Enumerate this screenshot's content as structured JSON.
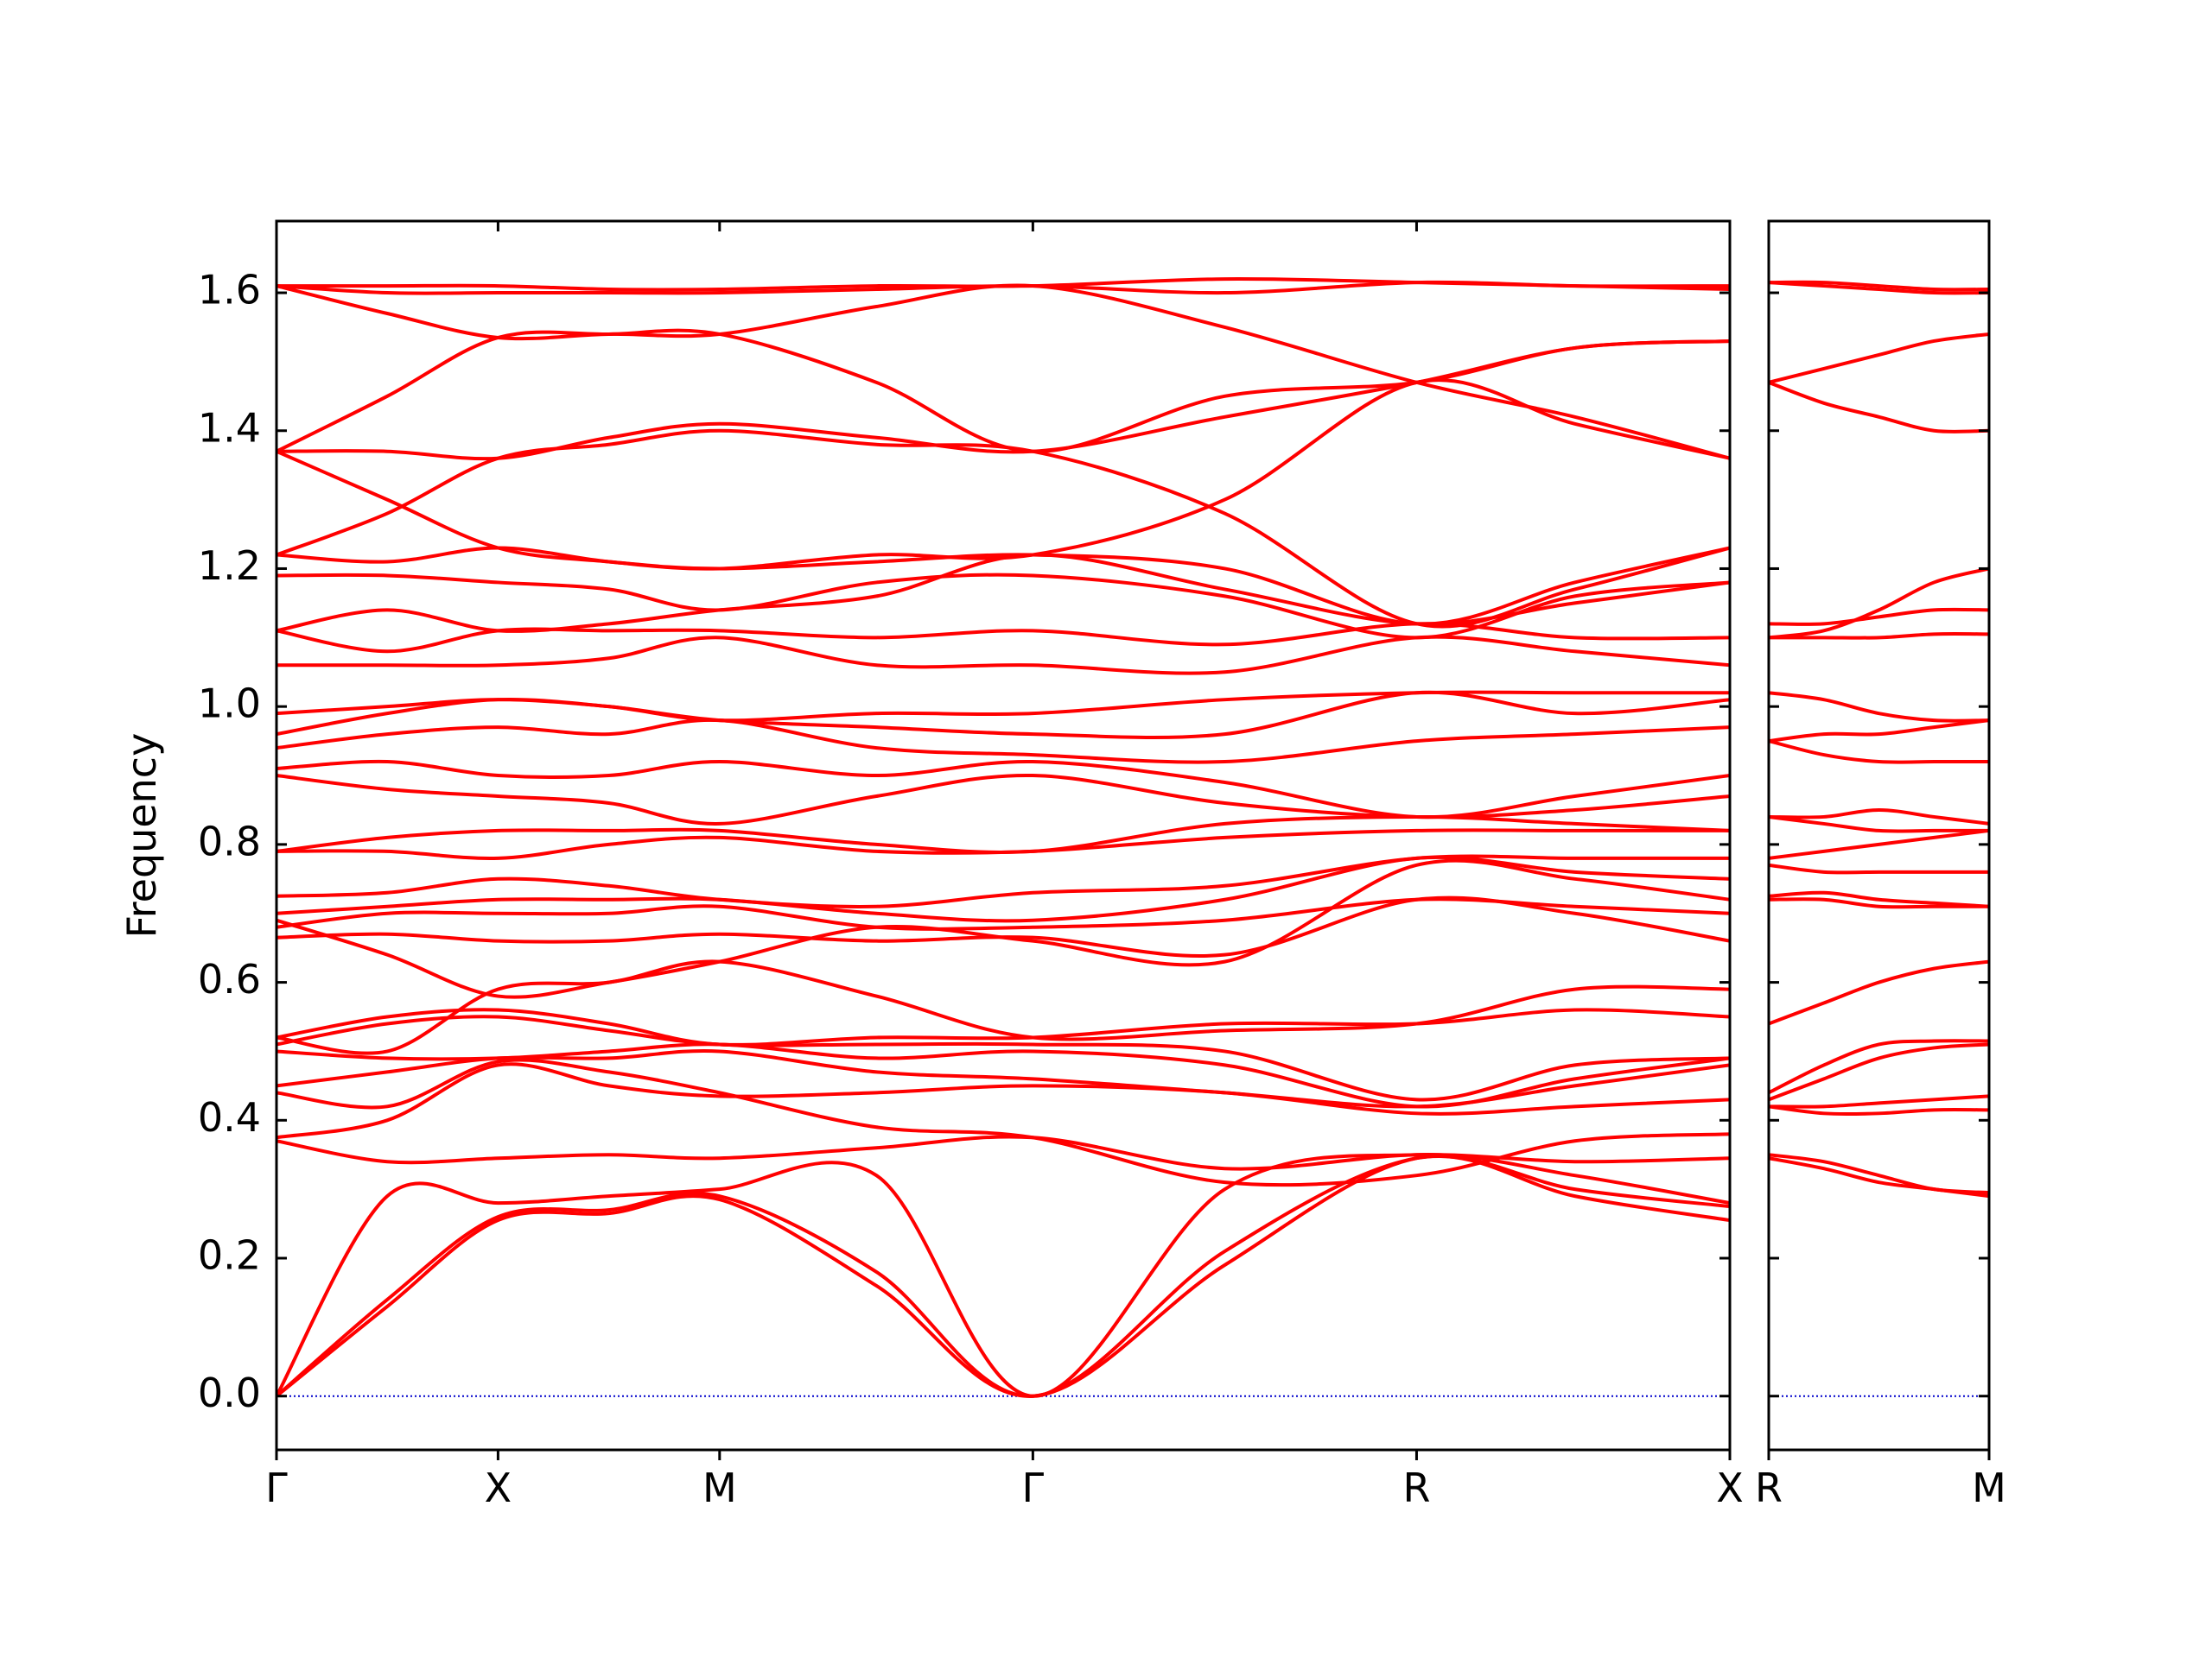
{
  "chart_data": [
    {
      "type": "line",
      "ylabel": "Frequency",
      "color": "#ff0000",
      "hline": 0,
      "hline_color": "#0000cc",
      "xlim": [
        0,
        3.28
      ],
      "ylim": [
        -0.078,
        1.704
      ],
      "xticks": [
        {
          "value": 0,
          "label": "Γ"
        },
        {
          "value": 0.5,
          "label": "X"
        },
        {
          "value": 1.0,
          "label": "M"
        },
        {
          "value": 1.707,
          "label": "Γ"
        },
        {
          "value": 2.573,
          "label": "R"
        },
        {
          "value": 3.28,
          "label": "X"
        }
      ],
      "yticks": [
        {
          "value": 0,
          "label": "0.0"
        },
        0.2,
        0.4,
        0.6,
        0.8,
        {
          "value": 1,
          "label": "1.0"
        },
        1.2,
        1.4,
        1.6
      ],
      "ytick_labels": true,
      "x": [
        0,
        0.25,
        0.5,
        0.75,
        1.0,
        1.354,
        1.707,
        2.14,
        2.573,
        2.93,
        3.28
      ],
      "series": [
        {
          "values": [
            0,
            0.13,
            0.255,
            0.265,
            0.285,
            0.16,
            0,
            0.19,
            0.345,
            0.29,
            0.255
          ]
        },
        {
          "values": [
            0,
            0.14,
            0.26,
            0.27,
            0.29,
            0.18,
            0,
            0.21,
            0.345,
            0.3,
            0.275
          ]
        },
        {
          "values": [
            0,
            0.29,
            0.28,
            0.29,
            0.3,
            0.32,
            0,
            0.3,
            0.35,
            0.32,
            0.28
          ]
        },
        {
          "values": [
            0.37,
            0.34,
            0.345,
            0.35,
            0.345,
            0.36,
            0.375,
            0.33,
            0.35,
            0.34,
            0.345
          ]
        },
        {
          "values": [
            0.375,
            0.4,
            0.48,
            0.45,
            0.435,
            0.44,
            0.45,
            0.44,
            0.41,
            0.42,
            0.43
          ]
        },
        {
          "values": [
            0.44,
            0.42,
            0.485,
            0.47,
            0.44,
            0.39,
            0.375,
            0.31,
            0.32,
            0.37,
            0.38
          ]
        },
        {
          "values": [
            0.45,
            0.47,
            0.49,
            0.49,
            0.5,
            0.47,
            0.46,
            0.44,
            0.42,
            0.45,
            0.48
          ]
        },
        {
          "values": [
            0.5,
            0.49,
            0.49,
            0.5,
            0.51,
            0.49,
            0.5,
            0.48,
            0.42,
            0.46,
            0.49
          ]
        },
        {
          "values": [
            0.51,
            0.54,
            0.55,
            0.53,
            0.51,
            0.51,
            0.51,
            0.5,
            0.43,
            0.48,
            0.49
          ]
        },
        {
          "values": [
            0.52,
            0.55,
            0.56,
            0.54,
            0.51,
            0.52,
            0.52,
            0.54,
            0.54,
            0.56,
            0.55
          ]
        },
        {
          "values": [
            0.52,
            0.5,
            0.59,
            0.6,
            0.63,
            0.58,
            0.52,
            0.53,
            0.54,
            0.59,
            0.59
          ]
        },
        {
          "values": [
            0.665,
            0.67,
            0.66,
            0.66,
            0.67,
            0.66,
            0.665,
            0.64,
            0.72,
            0.7,
            0.66
          ]
        },
        {
          "values": [
            0.68,
            0.7,
            0.7,
            0.7,
            0.71,
            0.68,
            0.68,
            0.69,
            0.72,
            0.71,
            0.7
          ]
        },
        {
          "values": [
            0.69,
            0.64,
            0.58,
            0.6,
            0.63,
            0.68,
            0.66,
            0.63,
            0.77,
            0.75,
            0.72
          ]
        },
        {
          "values": [
            0.7,
            0.71,
            0.72,
            0.72,
            0.72,
            0.7,
            0.69,
            0.72,
            0.78,
            0.76,
            0.75
          ]
        },
        {
          "values": [
            0.725,
            0.73,
            0.75,
            0.74,
            0.72,
            0.71,
            0.73,
            0.74,
            0.78,
            0.78,
            0.78
          ]
        },
        {
          "values": [
            0.79,
            0.79,
            0.78,
            0.8,
            0.81,
            0.79,
            0.79,
            0.81,
            0.82,
            0.82,
            0.82
          ]
        },
        {
          "values": [
            0.79,
            0.81,
            0.82,
            0.82,
            0.82,
            0.8,
            0.79,
            0.83,
            0.84,
            0.83,
            0.82
          ]
        },
        {
          "values": [
            0.9,
            0.88,
            0.87,
            0.86,
            0.83,
            0.87,
            0.9,
            0.86,
            0.84,
            0.85,
            0.87
          ]
        },
        {
          "values": [
            0.91,
            0.92,
            0.9,
            0.9,
            0.92,
            0.9,
            0.92,
            0.89,
            0.84,
            0.87,
            0.9
          ]
        },
        {
          "values": [
            0.94,
            0.96,
            0.97,
            0.96,
            0.98,
            0.94,
            0.93,
            0.92,
            0.95,
            0.96,
            0.97
          ]
        },
        {
          "values": [
            0.96,
            0.99,
            1.01,
            1.0,
            0.98,
            0.97,
            0.96,
            0.96,
            1.02,
            0.99,
            1.01
          ]
        },
        {
          "values": [
            0.99,
            1.0,
            1.01,
            1.0,
            0.98,
            0.99,
            0.99,
            1.01,
            1.02,
            1.02,
            1.02
          ]
        },
        {
          "values": [
            1.06,
            1.06,
            1.06,
            1.07,
            1.1,
            1.06,
            1.06,
            1.05,
            1.1,
            1.08,
            1.06
          ]
        },
        {
          "values": [
            1.11,
            1.08,
            1.11,
            1.11,
            1.11,
            1.1,
            1.11,
            1.09,
            1.12,
            1.1,
            1.1
          ]
        },
        {
          "values": [
            1.11,
            1.14,
            1.11,
            1.12,
            1.14,
            1.16,
            1.22,
            1.17,
            1.12,
            1.15,
            1.18
          ]
        },
        {
          "values": [
            1.19,
            1.19,
            1.18,
            1.17,
            1.14,
            1.18,
            1.19,
            1.16,
            1.1,
            1.16,
            1.18
          ]
        },
        {
          "values": [
            1.22,
            1.21,
            1.23,
            1.21,
            1.2,
            1.21,
            1.22,
            1.2,
            1.12,
            1.18,
            1.23
          ]
        },
        {
          "values": [
            1.22,
            1.28,
            1.36,
            1.38,
            1.4,
            1.38,
            1.37,
            1.28,
            1.12,
            1.17,
            1.23
          ]
        },
        {
          "values": [
            1.37,
            1.3,
            1.23,
            1.21,
            1.2,
            1.22,
            1.22,
            1.3,
            1.47,
            1.41,
            1.36
          ]
        },
        {
          "values": [
            1.37,
            1.37,
            1.36,
            1.39,
            1.41,
            1.39,
            1.37,
            1.42,
            1.47,
            1.52,
            1.53
          ]
        },
        {
          "values": [
            1.37,
            1.45,
            1.535,
            1.54,
            1.54,
            1.47,
            1.37,
            1.45,
            1.47,
            1.52,
            1.53
          ]
        },
        {
          "values": [
            1.61,
            1.57,
            1.535,
            1.54,
            1.54,
            1.58,
            1.61,
            1.55,
            1.47,
            1.42,
            1.36
          ]
        },
        {
          "values": [
            1.61,
            1.61,
            1.61,
            1.605,
            1.605,
            1.61,
            1.61,
            1.62,
            1.615,
            1.61,
            1.605
          ]
        },
        {
          "values": [
            1.61,
            1.6,
            1.6,
            1.6,
            1.6,
            1.605,
            1.61,
            1.6,
            1.615,
            1.61,
            1.61
          ]
        }
      ]
    },
    {
      "type": "line",
      "color": "#ff0000",
      "hline": 0,
      "hline_color": "#0000cc",
      "xlim": [
        3.28,
        3.78
      ],
      "ylim": [
        -0.078,
        1.704
      ],
      "xticks": [
        {
          "value": 3.28,
          "label": "R"
        },
        {
          "value": 3.78,
          "label": "M"
        }
      ],
      "yticks": [
        0,
        0.2,
        0.4,
        0.6,
        0.8,
        1,
        1.2,
        1.4,
        1.6
      ],
      "ytick_labels": false,
      "x": [
        3.28,
        3.405,
        3.53,
        3.655,
        3.78
      ],
      "series": [
        {
          "values": [
            0.345,
            0.33,
            0.31,
            0.3,
            0.29
          ]
        },
        {
          "values": [
            0.35,
            0.34,
            0.32,
            0.3,
            0.295
          ]
        },
        {
          "values": [
            0.42,
            0.41,
            0.41,
            0.415,
            0.415
          ]
        },
        {
          "values": [
            0.42,
            0.42,
            0.425,
            0.43,
            0.435
          ]
        },
        {
          "values": [
            0.43,
            0.46,
            0.49,
            0.505,
            0.51
          ]
        },
        {
          "values": [
            0.44,
            0.48,
            0.51,
            0.515,
            0.515
          ]
        },
        {
          "values": [
            0.54,
            0.57,
            0.6,
            0.62,
            0.63
          ]
        },
        {
          "values": [
            0.72,
            0.72,
            0.71,
            0.71,
            0.71
          ]
        },
        {
          "values": [
            0.725,
            0.73,
            0.72,
            0.715,
            0.71
          ]
        },
        {
          "values": [
            0.77,
            0.76,
            0.76,
            0.76,
            0.76
          ]
        },
        {
          "values": [
            0.78,
            0.79,
            0.8,
            0.81,
            0.82
          ]
        },
        {
          "values": [
            0.84,
            0.84,
            0.85,
            0.84,
            0.83
          ]
        },
        {
          "values": [
            0.84,
            0.83,
            0.82,
            0.82,
            0.82
          ]
        },
        {
          "values": [
            0.95,
            0.96,
            0.96,
            0.97,
            0.98
          ]
        },
        {
          "values": [
            0.95,
            0.93,
            0.92,
            0.92,
            0.92
          ]
        },
        {
          "values": [
            1.02,
            1.01,
            0.99,
            0.98,
            0.98
          ]
        },
        {
          "values": [
            1.1,
            1.11,
            1.14,
            1.18,
            1.2
          ]
        },
        {
          "values": [
            1.12,
            1.12,
            1.13,
            1.14,
            1.14
          ]
        },
        {
          "values": [
            1.1,
            1.1,
            1.1,
            1.105,
            1.105
          ]
        },
        {
          "values": [
            1.47,
            1.49,
            1.51,
            1.53,
            1.54
          ]
        },
        {
          "values": [
            1.47,
            1.44,
            1.42,
            1.4,
            1.4
          ]
        },
        {
          "values": [
            1.615,
            1.615,
            1.61,
            1.605,
            1.605
          ]
        },
        {
          "values": [
            1.615,
            1.61,
            1.605,
            1.6,
            1.6
          ]
        }
      ]
    }
  ]
}
